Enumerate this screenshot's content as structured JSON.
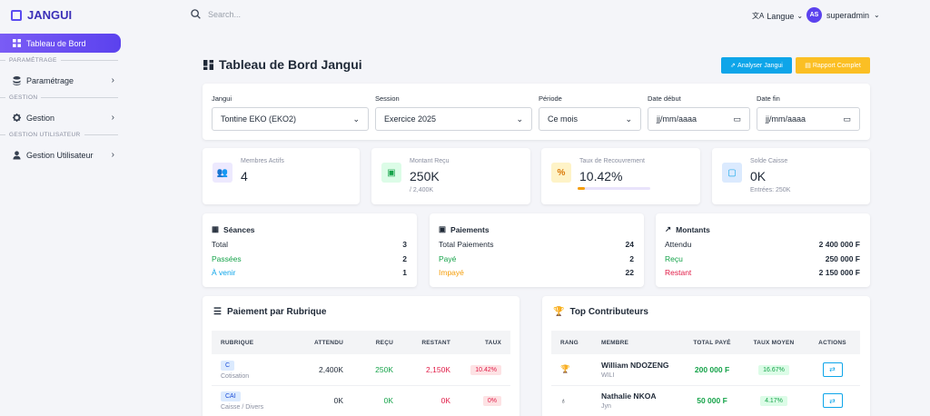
{
  "brand": {
    "name": "JANGUI"
  },
  "sidebar": {
    "active": "Tableau de Bord",
    "sec1": "PARAMÉTRAGE",
    "item1": "Paramétrage",
    "sec2": "GESTION",
    "item2": "Gestion",
    "sec3": "GESTION UTILISATEUR",
    "item3": "Gestion Utilisateur"
  },
  "topbar": {
    "search_placeholder": "Search...",
    "lang": "Langue",
    "user": "superadmin",
    "initials": "AS"
  },
  "page": {
    "title": "Tableau de Bord Jangui",
    "btn1": "Analyser Jangui",
    "btn2": "Rapport Complet"
  },
  "filters": {
    "jangui_label": "Jangui",
    "jangui_value": "Tontine EKO (EKO2)",
    "session_label": "Session",
    "session_value": "Exercice 2025",
    "periode_label": "Période",
    "periode_value": "Ce mois",
    "debut_label": "Date début",
    "debut_value": "jj/mm/aaaa",
    "fin_label": "Date fin",
    "fin_value": "jj/mm/aaaa"
  },
  "kpis": {
    "membres": {
      "label": "Membres Actifs",
      "value": "4"
    },
    "montant": {
      "label": "Montant Reçu",
      "value": "250K",
      "sub": "/ 2,400K"
    },
    "taux": {
      "label": "Taux de Recouvrement",
      "value": "10.42%",
      "progress": 10.42
    },
    "solde": {
      "label": "Solde Caisse",
      "value": "0K",
      "sub": "Entrées: 250K"
    }
  },
  "seances": {
    "title": "Séances",
    "r1l": "Total",
    "r1v": "3",
    "r2l": "Passées",
    "r2v": "2",
    "r3l": "À venir",
    "r3v": "1"
  },
  "paiements": {
    "title": "Paiements",
    "r1l": "Total Paiements",
    "r1v": "24",
    "r2l": "Payé",
    "r2v": "2",
    "r3l": "Impayé",
    "r3v": "22"
  },
  "montants": {
    "title": "Montants",
    "r1l": "Attendu",
    "r1v": "2 400 000 F",
    "r2l": "Reçu",
    "r2v": "250 000 F",
    "r3l": "Restant",
    "r3v": "2 150 000 F"
  },
  "rubrique": {
    "title": "Paiement par Rubrique",
    "cols": [
      "RUBRIQUE",
      "ATTENDU",
      "REÇU",
      "RESTANT",
      "TAUX"
    ],
    "rows": [
      {
        "code": "C",
        "name": "Cotisation",
        "attendu": "2,400K",
        "recu": "250K",
        "restant": "2,150K",
        "taux": "10.42%"
      },
      {
        "code": "CAI",
        "name": "Caisse / Divers",
        "attendu": "0K",
        "recu": "0K",
        "restant": "0K",
        "taux": "0%"
      }
    ]
  },
  "top": {
    "title": "Top Contributeurs",
    "cols": [
      "RANG",
      "MEMBRE",
      "TOTAL PAYÉ",
      "TAUX MOYEN",
      "ACTIONS"
    ],
    "rows": [
      {
        "name": "William NDOZENG",
        "sub": "WILI",
        "total": "200 000 F",
        "taux": "16.67%"
      },
      {
        "name": "Nathalie NKOA",
        "sub": "Jyn",
        "total": "50 000 F",
        "taux": "4.17%"
      }
    ]
  }
}
